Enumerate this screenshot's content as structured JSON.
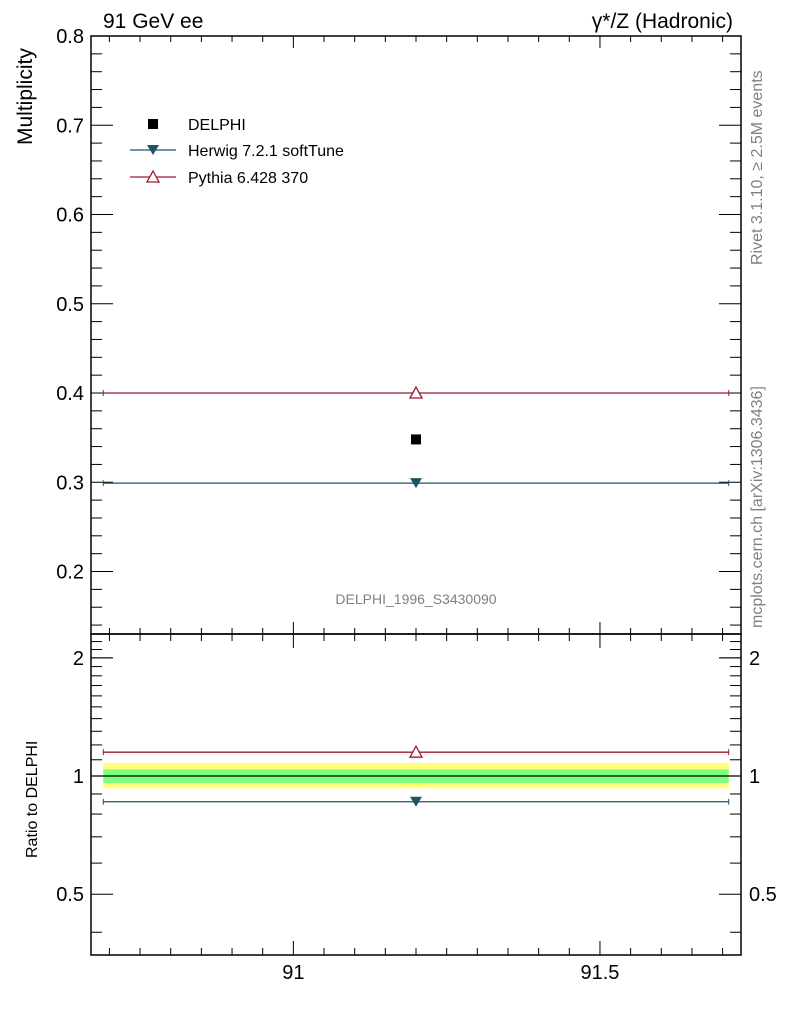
{
  "header": {
    "left_title": "91 GeV ee",
    "right_title": "γ*/Z (Hadronic)"
  },
  "side_text": {
    "rivet": "Rivet 3.1.10, ≥ 2.5M events",
    "mcplots": "mcplots.cern.ch [arXiv:1306.3436]"
  },
  "watermark": "DELPHI_1996_S3430090",
  "colors": {
    "data": "#000000",
    "herwig": "#1f5468",
    "pythia": "#9b1b30",
    "band_inner": "#7fff7f",
    "band_outer": "#ffff7f"
  },
  "chart_data": [
    {
      "type": "scatter",
      "panel": "main",
      "title": "91 GeV ee",
      "xlabel": "",
      "ylabel": "Multiplicity",
      "xlim": [
        90.67,
        91.73
      ],
      "ylim": [
        0.13,
        0.8
      ],
      "yticks": [
        0.2,
        0.3,
        0.4,
        0.5,
        0.6,
        0.7,
        0.8
      ],
      "ytick_labels": [
        "0.2",
        "0.3",
        "0.4",
        "0.5",
        "0.6",
        "0.7",
        "0.8"
      ],
      "legend_position": "top-left",
      "series": [
        {
          "name": "DELPHI",
          "marker": "square",
          "x": [
            91.2
          ],
          "y": [
            0.348
          ],
          "xerr": [
            [
              91.2,
              91.2
            ]
          ]
        },
        {
          "name": "Herwig 7.2.1 softTune",
          "marker": "triangle-down",
          "x": [
            91.2
          ],
          "y": [
            0.299
          ],
          "xerr": [
            [
              90.69,
              91.71
            ]
          ]
        },
        {
          "name": "Pythia 6.428 370",
          "marker": "triangle-up-open",
          "x": [
            91.2
          ],
          "y": [
            0.4
          ],
          "xerr": [
            [
              90.69,
              91.71
            ]
          ]
        }
      ]
    },
    {
      "type": "scatter",
      "panel": "ratio",
      "xlabel": "",
      "ylabel": "Ratio to DELPHI",
      "xlim": [
        90.67,
        91.73
      ],
      "ylim": [
        0.35,
        2.3
      ],
      "yticks": [
        0.5,
        1,
        2
      ],
      "ytick_labels": [
        "0.5",
        "1",
        "2"
      ],
      "xticks": [
        91,
        91.5
      ],
      "xtick_labels": [
        "91",
        "91.5"
      ],
      "reference": 1,
      "band_inner": [
        0.96,
        1.04
      ],
      "band_outer": [
        0.93,
        1.08
      ],
      "series": [
        {
          "name": "Herwig 7.2.1 softTune",
          "x": [
            91.2
          ],
          "y": [
            0.86
          ],
          "xerr": [
            [
              90.69,
              91.71
            ]
          ]
        },
        {
          "name": "Pythia 6.428 370",
          "x": [
            91.2
          ],
          "y": [
            1.15
          ],
          "xerr": [
            [
              90.69,
              91.71
            ]
          ]
        }
      ]
    }
  ]
}
